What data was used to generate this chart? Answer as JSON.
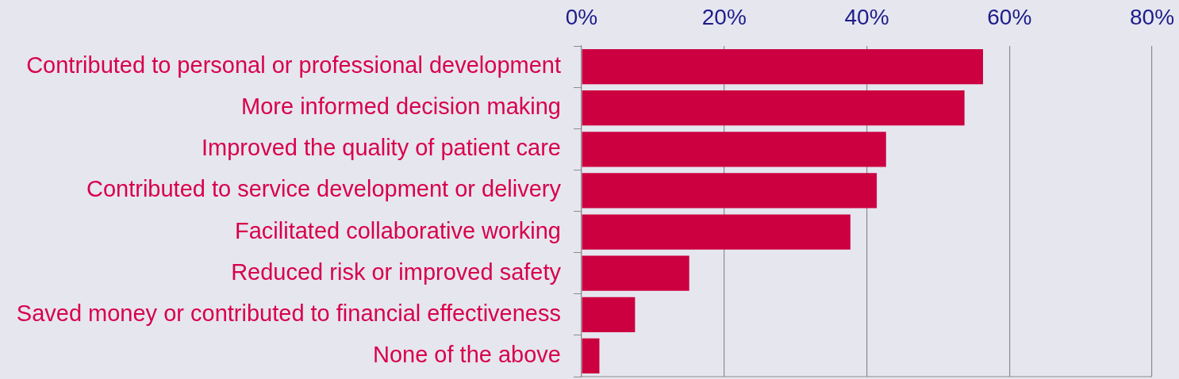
{
  "chart_data": {
    "type": "bar",
    "orientation": "horizontal",
    "categories": [
      "Contributed to personal or professional development",
      "More informed decision making",
      "Improved the quality of patient care",
      "Contributed to service development or delivery",
      "Facilitated collaborative working",
      "Reduced risk or improved safety",
      "Saved money or contributed to financial effectiveness",
      "None of the above"
    ],
    "values": [
      56.3,
      53.7,
      42.7,
      41.4,
      37.7,
      15.1,
      7.5,
      2.5
    ],
    "color": "#cc0040",
    "xlim": [
      0,
      80
    ],
    "xticks": [
      {
        "value": 0,
        "label": "0%"
      },
      {
        "value": 20,
        "label": "20%"
      },
      {
        "value": 40,
        "label": "40%"
      },
      {
        "value": 60,
        "label": "60%"
      },
      {
        "value": 80,
        "label": "80%"
      }
    ],
    "grid": "x"
  }
}
